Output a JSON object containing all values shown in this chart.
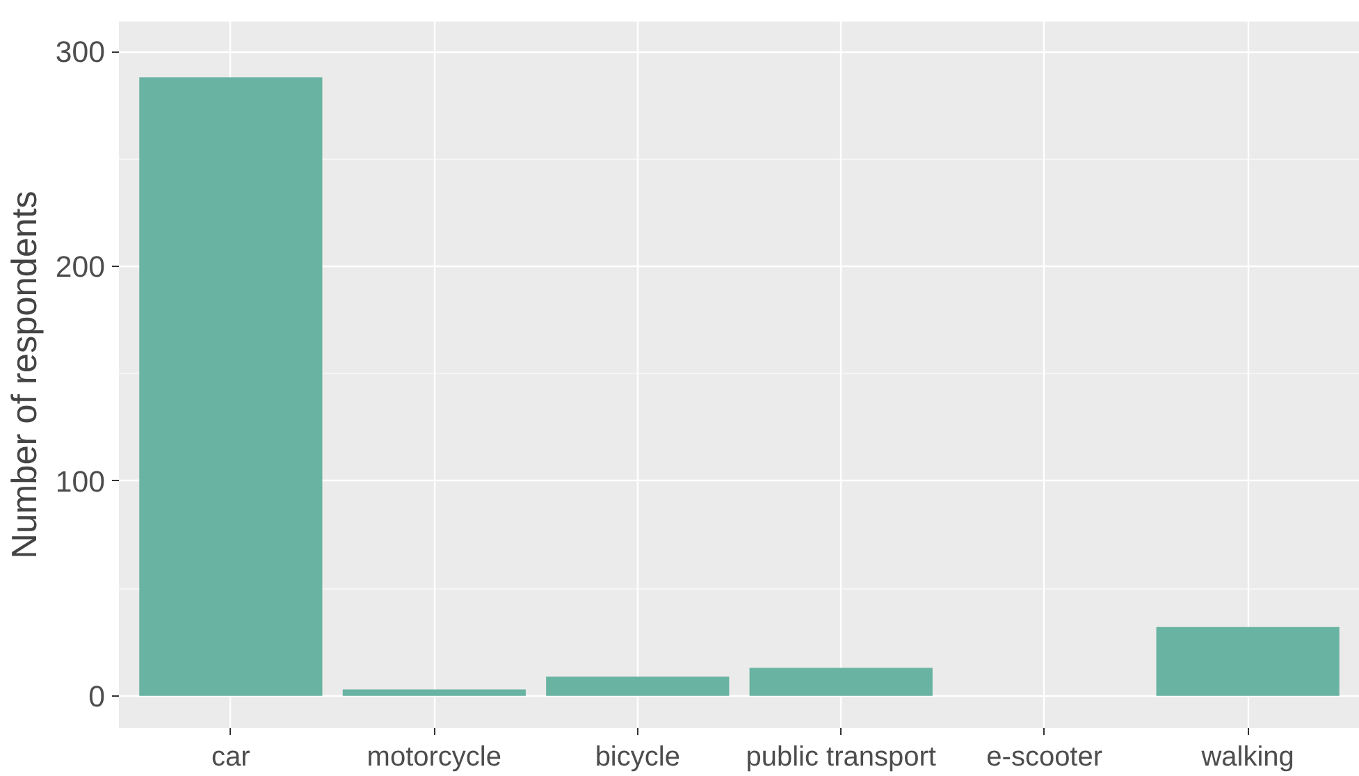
{
  "chart_data": {
    "type": "bar",
    "ylabel": "Number of respondents",
    "categories": [
      "car",
      "motorcycle",
      "bicycle",
      "public transport",
      "e-scooter",
      "walking"
    ],
    "values": [
      288,
      3,
      9,
      13,
      0,
      32
    ],
    "color": "#69b3a2",
    "ylim": [
      -15,
      314
    ],
    "yticks": [
      0,
      100,
      200,
      300
    ],
    "grid": true
  }
}
